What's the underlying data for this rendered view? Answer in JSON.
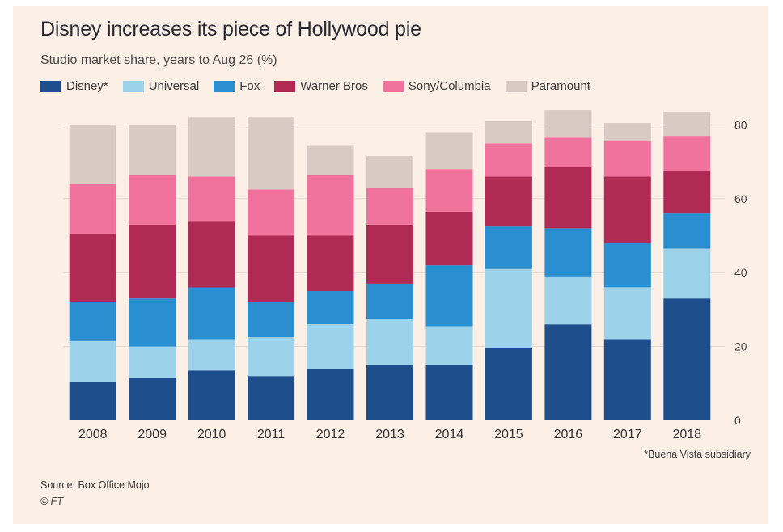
{
  "chart_data": {
    "type": "bar",
    "stacked": true,
    "title": "Disney increases its piece of Hollywood pie",
    "subtitle": "Studio market share, years to Aug 26 (%)",
    "categories": [
      "2008",
      "2009",
      "2010",
      "2011",
      "2012",
      "2013",
      "2014",
      "2015",
      "2016",
      "2017",
      "2018"
    ],
    "series": [
      {
        "name": "Disney*",
        "color": "#1f4e8c",
        "values": [
          10.5,
          11.5,
          13.5,
          12,
          14,
          15,
          15,
          19.5,
          26,
          22,
          33
        ]
      },
      {
        "name": "Universal",
        "color": "#9dd3ea",
        "values": [
          11,
          8.5,
          8.5,
          10.5,
          12,
          12.5,
          10.5,
          21.5,
          13,
          14,
          13.5
        ]
      },
      {
        "name": "Fox",
        "color": "#2a8fd1",
        "values": [
          10.5,
          13,
          14,
          9.5,
          9,
          9.5,
          16.5,
          11.5,
          13,
          12,
          9.5
        ]
      },
      {
        "name": "Warner Bros",
        "color": "#b02a55",
        "values": [
          18.5,
          20,
          18,
          18,
          15,
          16,
          14.5,
          13.5,
          16.5,
          18,
          11.5
        ]
      },
      {
        "name": "Sony/Columbia",
        "color": "#f0739e",
        "values": [
          13.5,
          13.5,
          12,
          12.5,
          16.5,
          10,
          11.5,
          9,
          8,
          9.5,
          9.5
        ]
      },
      {
        "name": "Paramount",
        "color": "#d9cbc3",
        "values": [
          16,
          13.5,
          16,
          19.5,
          8,
          8.5,
          10,
          6,
          7.5,
          5,
          6.5
        ]
      }
    ],
    "ylim": [
      0,
      85
    ],
    "yticks": [
      0,
      20,
      40,
      60,
      80
    ],
    "grid": true,
    "legend": "top"
  },
  "footnote": "*Buena Vista subsidiary",
  "source": "Source: Box Office Mojo",
  "copyright": "© FT"
}
